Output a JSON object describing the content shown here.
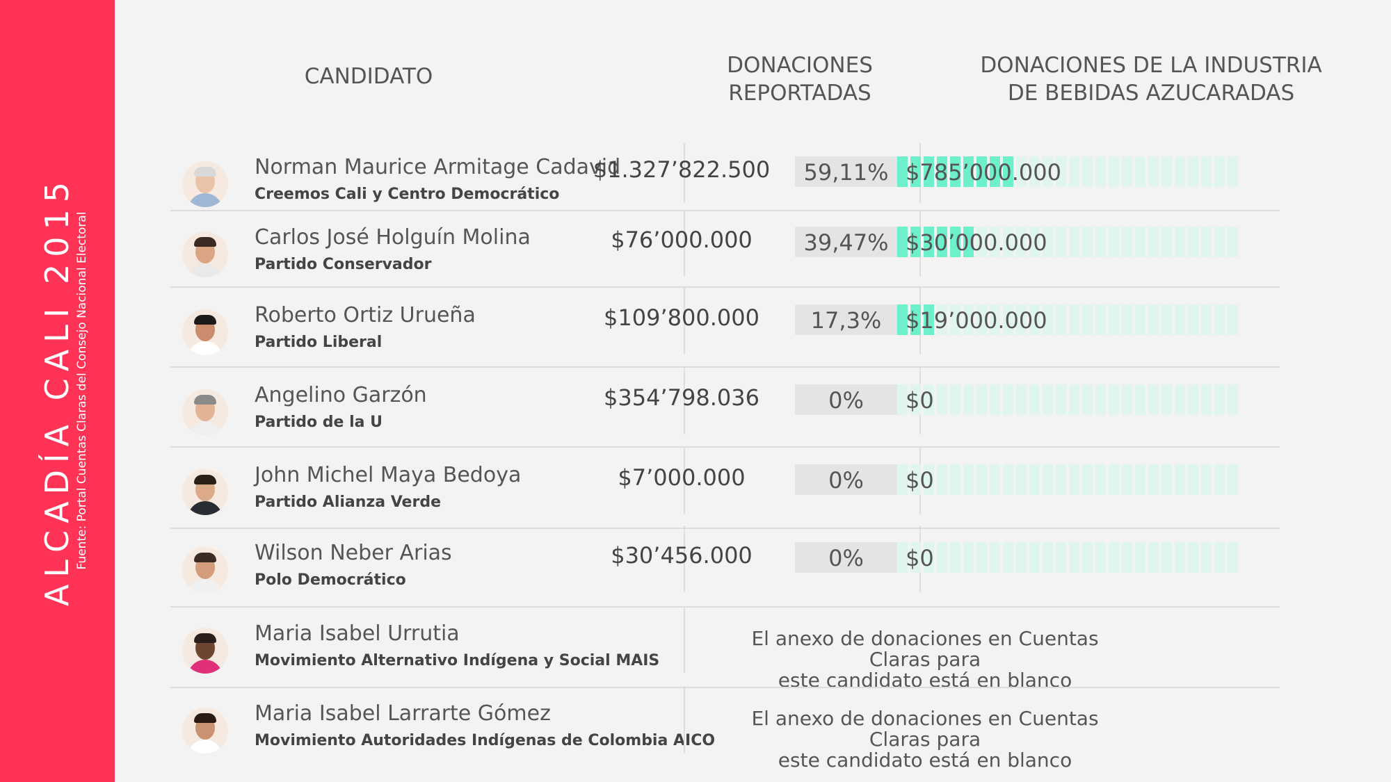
{
  "sidebar": {
    "title": "ALCADÍA CALI 2015",
    "source": "Fuente: Portal Cuentas Claras del Consejo Nacional Electoral"
  },
  "headers": {
    "candidate": "CANDIDATO",
    "donations_line1": "DONACIONES",
    "donations_line2": "REPORTADAS",
    "industry_line1": "DONACIONES DE LA INDUSTRIA",
    "industry_line2": "DE BEBIDAS AZUCARADAS"
  },
  "colors": {
    "sidebar": "#ff3355",
    "bar_fill": "#6ef0cc",
    "bar_empty": "#e0f5ee",
    "pct_box": "#e4e4e4"
  },
  "chart_data": {
    "type": "table",
    "columns": [
      "CANDIDATO",
      "DONACIONES REPORTADAS",
      "DONACIONES DE LA INDUSTRIA DE BEBIDAS AZUCARADAS"
    ],
    "rows": [
      {
        "name": "Norman Maurice Armitage Cadavid",
        "party": "Creemos Cali y Centro Democrático",
        "reported": "$1.327’822.500",
        "pct": "59,11%",
        "industry": "$785’000.000",
        "share": 0.5911,
        "note": ""
      },
      {
        "name": "Carlos José Holguín Molina",
        "party": "Partido Conservador",
        "reported": "$76’000.000",
        "pct": "39,47%",
        "industry": "$30’000.000",
        "share": 0.3947,
        "note": ""
      },
      {
        "name": "Roberto Ortiz Urueña",
        "party": "Partido Liberal",
        "reported": "$109’800.000",
        "pct": "17,3%",
        "industry": "$19’000.000",
        "share": 0.173,
        "note": ""
      },
      {
        "name": "Angelino Garzón",
        "party": "Partido de la U",
        "reported": "$354’798.036",
        "pct": "0%",
        "industry": "$0",
        "share": 0,
        "note": ""
      },
      {
        "name": "John Michel Maya Bedoya",
        "party": "Partido Alianza Verde",
        "reported": "$7’000.000",
        "pct": "0%",
        "industry": "$0",
        "share": 0,
        "note": ""
      },
      {
        "name": "Wilson Neber Arias",
        "party": "Polo Democrático",
        "reported": "$30’456.000",
        "pct": "0%",
        "industry": "$0",
        "share": 0,
        "note": ""
      },
      {
        "name": "Maria Isabel Urrutia",
        "party": "Movimiento Alternativo Indígena y Social MAIS",
        "reported": "",
        "pct": "",
        "industry": "",
        "share": null,
        "note_line1": "El anexo de donaciones en Cuentas Claras para",
        "note_line2": "este candidato está en blanco"
      },
      {
        "name": "Maria Isabel Larrarte Gómez",
        "party": "Movimiento Autoridades Indígenas de Colombia AICO",
        "reported": "",
        "pct": "",
        "industry": "",
        "share": null,
        "note_line1": "El anexo de donaciones en Cuentas Claras para",
        "note_line2": "este candidato está en blanco"
      }
    ]
  }
}
